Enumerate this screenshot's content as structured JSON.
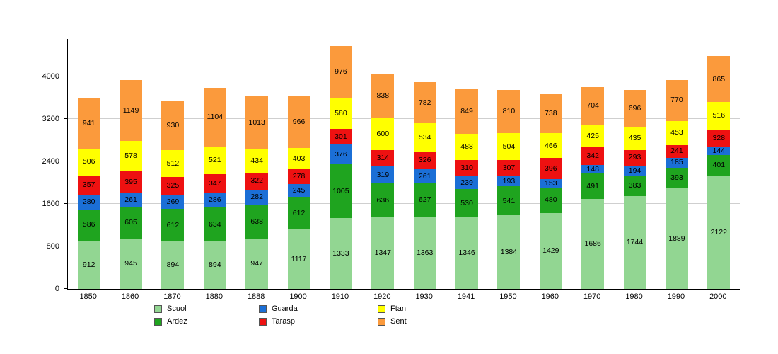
{
  "chart_data": {
    "type": "bar",
    "stacked": true,
    "title": "",
    "xlabel": "",
    "ylabel": "",
    "categories": [
      "1850",
      "1860",
      "1870",
      "1880",
      "1888",
      "1900",
      "1910",
      "1920",
      "1930",
      "1941",
      "1950",
      "1960",
      "1970",
      "1980",
      "1990",
      "2000"
    ],
    "series": [
      {
        "name": "Scuol",
        "color": "#92D692",
        "values": [
          912,
          945,
          894,
          894,
          947,
          1117,
          1333,
          1347,
          1363,
          1346,
          1384,
          1429,
          1686,
          1744,
          1889,
          2122
        ]
      },
      {
        "name": "Ardez",
        "color": "#1FA41F",
        "values": [
          586,
          605,
          612,
          634,
          638,
          612,
          1005,
          636,
          627,
          530,
          541,
          480,
          491,
          383,
          393,
          401
        ]
      },
      {
        "name": "Guarda",
        "color": "#1B6FD6",
        "values": [
          280,
          261,
          269,
          286,
          282,
          245,
          376,
          319,
          261,
          239,
          193,
          153,
          148,
          194,
          185,
          144
        ]
      },
      {
        "name": "Tarasp",
        "color": "#EE1111",
        "values": [
          357,
          395,
          325,
          347,
          322,
          278,
          301,
          314,
          326,
          310,
          307,
          396,
          342,
          293,
          241,
          328
        ]
      },
      {
        "name": "Ftan",
        "color": "#FFFF00",
        "values": [
          506,
          578,
          512,
          521,
          434,
          403,
          580,
          600,
          534,
          488,
          504,
          466,
          425,
          435,
          453,
          516
        ]
      },
      {
        "name": "Sent",
        "color": "#FB9A3C",
        "values": [
          941,
          1149,
          930,
          1104,
          1013,
          966,
          976,
          838,
          782,
          849,
          810,
          738,
          704,
          696,
          770,
          865
        ]
      }
    ],
    "ylim": [
      0,
      4700
    ],
    "yticks": [
      0,
      800,
      1600,
      2400,
      3200,
      4000
    ],
    "grid": true,
    "legend_position": "bottom"
  }
}
